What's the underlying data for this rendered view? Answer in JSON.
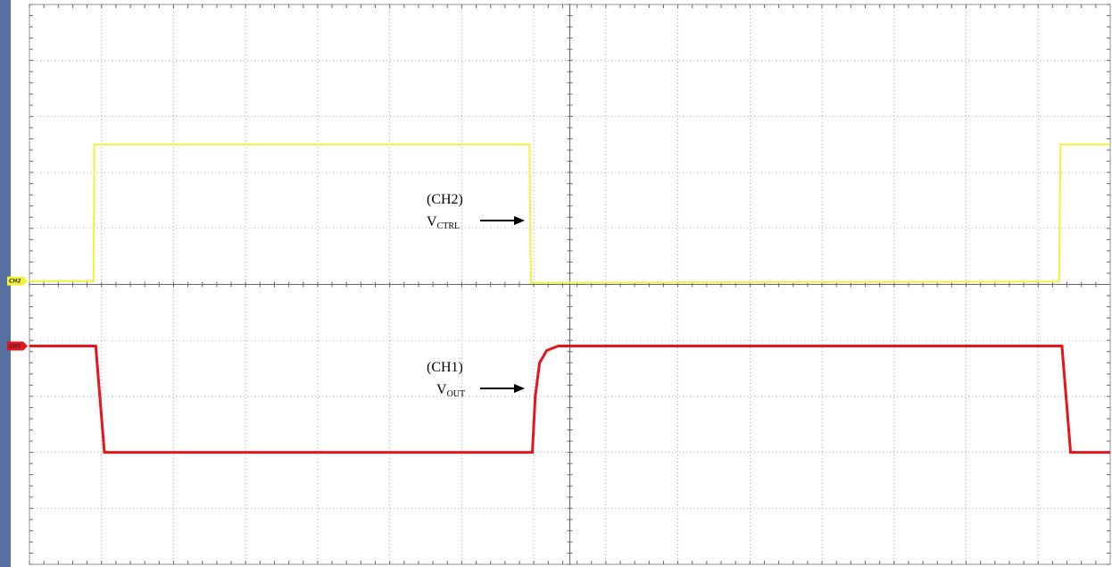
{
  "chart_data": {
    "type": "line",
    "xlim": [
      0,
      15
    ],
    "ylim": [
      -5,
      5
    ],
    "grid": true,
    "series": [
      {
        "name": "CH2",
        "color": "#f2f23a",
        "x": [
          0,
          0.89,
          0.9,
          6.94,
          6.96,
          14.29,
          14.31,
          15
        ],
        "values": [
          0.06,
          0.06,
          2.5,
          2.5,
          0.03,
          0.05,
          2.5,
          2.5
        ]
      },
      {
        "name": "CH1",
        "color": "#e8141b",
        "x": [
          0,
          0.92,
          1.04,
          6.98,
          7.02,
          7.08,
          7.18,
          7.34,
          14.33,
          14.45,
          15
        ],
        "values": [
          -1.1,
          -1.1,
          -3.0,
          -3.0,
          -2.0,
          -1.4,
          -1.18,
          -1.1,
          -1.1,
          -3.0,
          -3.0
        ]
      }
    ],
    "annotations": [
      {
        "text": "(CH2)",
        "label": "V",
        "sub": "CTRL"
      },
      {
        "text": "(CH1)",
        "label": "V",
        "sub": "OUT"
      }
    ]
  }
}
